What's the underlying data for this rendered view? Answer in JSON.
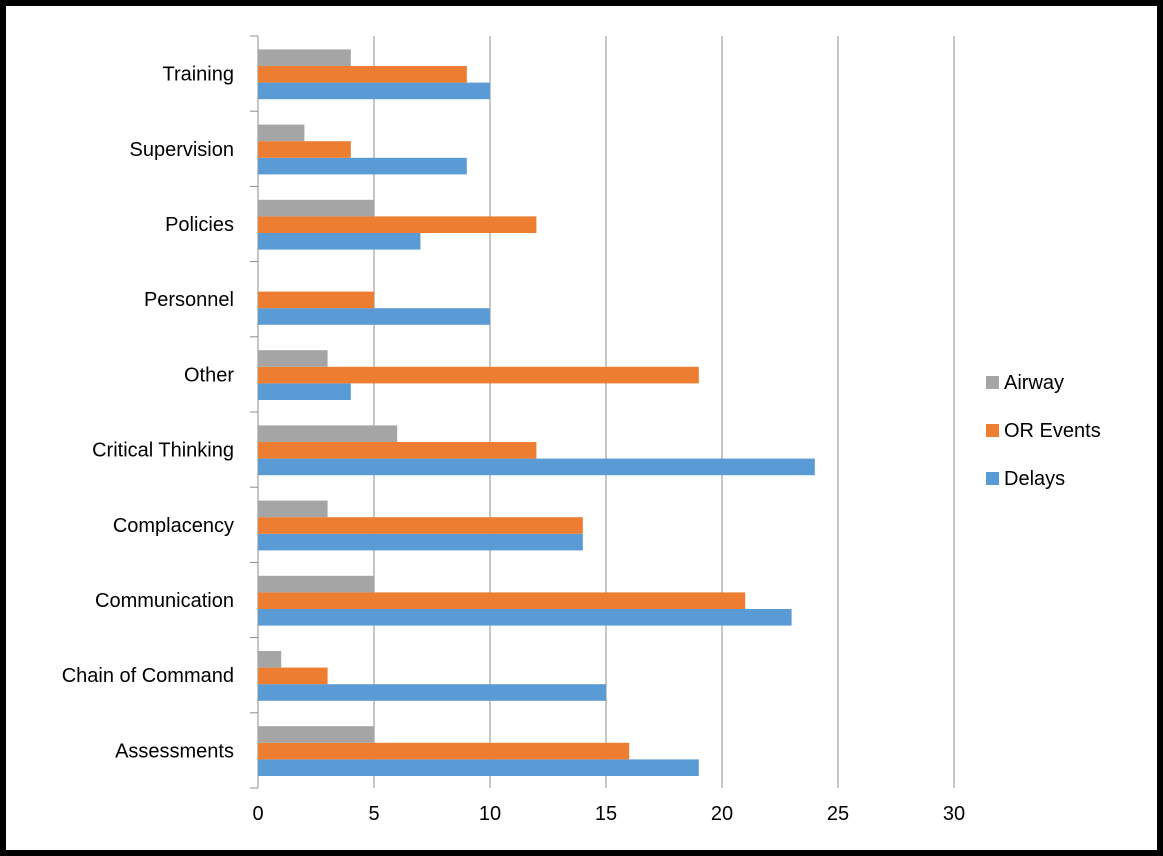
{
  "chart_data": {
    "type": "bar",
    "orientation": "horizontal",
    "title": "",
    "xlabel": "",
    "ylabel": "",
    "xlim": [
      0,
      30
    ],
    "x_ticks": [
      "0",
      "5",
      "10",
      "15",
      "20",
      "25",
      "30"
    ],
    "grid": true,
    "legend_position": "right",
    "categories": [
      "Assessments",
      "Chain of Command",
      "Communication",
      "Complacency",
      "Critical Thinking",
      "Other",
      "Personnel",
      "Policies",
      "Supervision",
      "Training"
    ],
    "series": [
      {
        "name": "Delays",
        "color": "#5B9BD5",
        "values": [
          19,
          15,
          23,
          14,
          24,
          4,
          10,
          7,
          9,
          10
        ]
      },
      {
        "name": "OR Events",
        "color": "#ED7D31",
        "values": [
          16,
          3,
          21,
          14,
          12,
          19,
          5,
          12,
          4,
          9
        ]
      },
      {
        "name": "Airway",
        "color": "#A5A5A5",
        "values": [
          5,
          1,
          5,
          3,
          6,
          3,
          0,
          5,
          2,
          4
        ]
      }
    ],
    "legend": [
      "Airway",
      "OR Events",
      "Delays"
    ]
  }
}
